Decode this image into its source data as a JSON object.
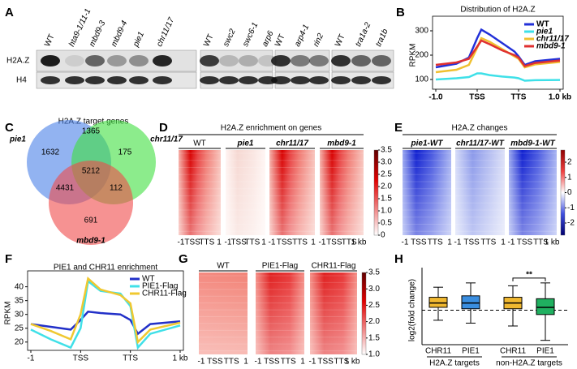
{
  "figure": {
    "panel_labels": [
      "A",
      "B",
      "C",
      "D",
      "E",
      "F",
      "G",
      "H"
    ],
    "blot": {
      "lanes": [
        "WT",
        "hta9-1/11-1",
        "mbd9-3",
        "mbd9-4",
        "pie1",
        "chr11/17",
        "WT",
        "swc2",
        "swc6-1",
        "arp6",
        "WT",
        "arp4-1",
        "rin2",
        "WT",
        "tra1a-2",
        "tra1b"
      ],
      "rows": [
        "H2A.Z",
        "H4"
      ]
    },
    "venn": {
      "title": "H2A.Z target genes",
      "sets": [
        "pie1",
        "chr11/17",
        "mbd9-1"
      ],
      "counts": [
        1632,
        1365,
        175,
        5212,
        4431,
        112,
        691
      ]
    },
    "heatmap_x_labels": [
      "-1",
      "TSS",
      "TTS",
      "1",
      "1 kb"
    ],
    "heatmap_d": {
      "title": "H2A.Z enrichment on genes",
      "columns": [
        "WT",
        "pie1",
        "chr11/17",
        "mbd9-1"
      ],
      "lim": [
        0,
        3.5
      ],
      "colorbar_ticks": [
        {
          "value": 3.5,
          "label": "3.5"
        },
        {
          "value": 3,
          "label": "3.0"
        },
        {
          "value": 2.5,
          "label": "2.5"
        },
        {
          "value": 2,
          "label": "2.0"
        },
        {
          "value": 1.5,
          "label": "1.5"
        },
        {
          "value": 1,
          "label": "1.0"
        },
        {
          "value": 0.5,
          "label": "0.5"
        },
        0
      ]
    },
    "heatmap_e": {
      "title": "H2A.Z changes",
      "columns": [
        "pie1-WT",
        "chr11/17-WT",
        "mbd9-1-WT"
      ],
      "lim": [
        -2.8,
        2.8
      ],
      "colorbar_ticks": [
        2,
        1,
        0,
        -1,
        -2
      ]
    },
    "heatmap_g": {
      "columns": [
        "WT",
        "PIE1-Flag",
        "CHR11-Flag"
      ],
      "lim": [
        1,
        3.5
      ],
      "colorbar_ticks": [
        {
          "value": 3.5,
          "label": "3.5"
        },
        {
          "value": 3,
          "label": "3.0"
        },
        {
          "value": 2.5,
          "label": "2.5"
        },
        {
          "value": 2,
          "label": "2.0"
        },
        {
          "value": 1.5,
          "label": "1.5"
        },
        {
          "value": 1,
          "label": "1.0"
        }
      ]
    }
  },
  "chart_data": [
    {
      "type": "line",
      "title": "Distribution of H2A.Z",
      "ylabel": "RPKM",
      "x": [
        -1,
        -0.5,
        -0.2,
        0,
        0.1,
        0.3,
        0.6,
        0.9,
        1,
        1.15,
        1.4,
        2
      ],
      "xlim": [
        -1,
        2
      ],
      "xticks": [
        {
          "value": -1,
          "label": "-1.0"
        },
        {
          "value": 0,
          "label": "TSS"
        },
        {
          "value": 1,
          "label": "TTS"
        },
        {
          "value": 2,
          "label": "1.0 kb"
        }
      ],
      "ylim": [
        60,
        340
      ],
      "yticks": [
        100,
        200,
        300
      ],
      "legend": "upper right",
      "series": [
        {
          "name": "WT",
          "color": "#2230d8",
          "values": [
            150,
            165,
            190,
            270,
            305,
            285,
            250,
            215,
            195,
            160,
            175,
            185
          ]
        },
        {
          "name": "pie1",
          "color": "#3ee0e8",
          "values": [
            100,
            105,
            110,
            125,
            125,
            118,
            112,
            108,
            105,
            95,
            97,
            98
          ]
        },
        {
          "name": "chr11/17",
          "color": "#f0c030",
          "values": [
            130,
            140,
            160,
            230,
            270,
            255,
            225,
            195,
            185,
            150,
            162,
            172
          ]
        },
        {
          "name": "mbd9-1",
          "color": "#e03030",
          "values": [
            160,
            170,
            185,
            235,
            260,
            245,
            220,
            200,
            190,
            155,
            168,
            178
          ]
        }
      ]
    },
    {
      "type": "line",
      "title": "PIE1 and CHR11 enrichment",
      "ylabel": "RPKM",
      "x": [
        -1,
        -0.6,
        -0.2,
        0,
        0.15,
        0.4,
        0.8,
        1,
        1.15,
        1.4,
        2
      ],
      "xlim": [
        -1,
        2
      ],
      "xticks": [
        -1,
        {
          "value": 0,
          "label": "TSS"
        },
        {
          "value": 1,
          "label": "TTS"
        },
        {
          "value": 2,
          "label": "1 kb"
        }
      ],
      "ylim": [
        17,
        44
      ],
      "yticks": [
        20,
        25,
        30,
        35,
        40
      ],
      "legend": "upper right",
      "series": [
        {
          "name": "WT",
          "color": "#2230c8",
          "values": [
            26.5,
            25.5,
            24.5,
            28,
            31,
            30.5,
            30,
            28,
            23,
            26.5,
            27.5
          ]
        },
        {
          "name": "PIE1-Flag",
          "color": "#40e0e8",
          "values": [
            24.5,
            21,
            18,
            25,
            42,
            38.5,
            37.5,
            33,
            18,
            23,
            26
          ]
        },
        {
          "name": "CHR11-Flag",
          "color": "#f0c830",
          "values": [
            26.5,
            24,
            21,
            30,
            43,
            39,
            37,
            34,
            20,
            24.5,
            27
          ]
        }
      ]
    },
    {
      "type": "box",
      "ylabel": "log2(fold change)",
      "categories": [
        "CHR11",
        "PIE1",
        "CHR11",
        "PIE1"
      ],
      "groups": [
        "H2A.Z targets",
        "non-H2A.Z targets"
      ],
      "colors": [
        "#f0b830",
        "#3a8ee0",
        "#f0b830",
        "#20b060"
      ],
      "boxes": [
        [
          -0.35,
          0.1,
          0.25,
          0.45,
          0.8
        ],
        [
          -0.45,
          0.05,
          0.25,
          0.5,
          0.95
        ],
        [
          -0.55,
          0.05,
          0.25,
          0.45,
          0.85
        ],
        [
          -1.05,
          -0.15,
          0.1,
          0.4,
          0.95
        ]
      ],
      "ylim": [
        -1.2,
        1.2
      ],
      "reference_line": 0,
      "annotation": "**"
    }
  ]
}
